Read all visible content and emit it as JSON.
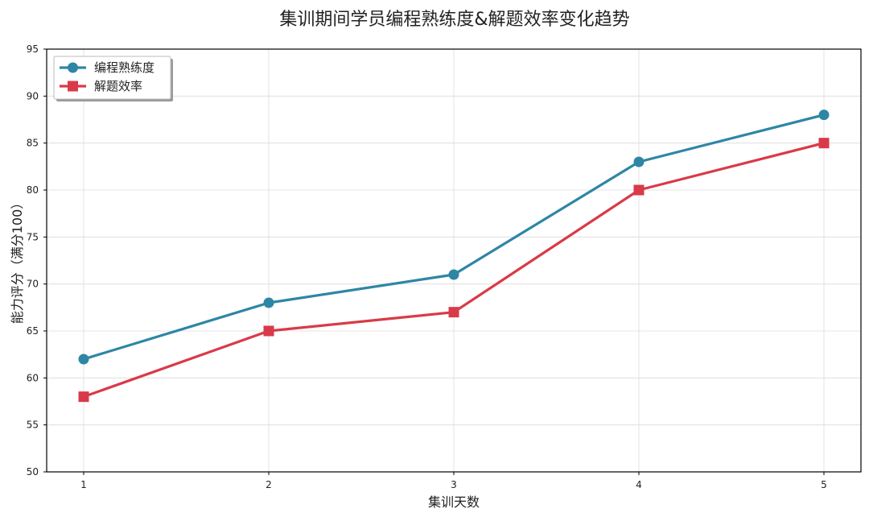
{
  "chart_data": {
    "type": "line",
    "title": "集训期间学员编程熟练度&解题效率变化趋势",
    "xlabel": "集训天数",
    "ylabel": "能力评分（满分100）",
    "x": [
      1,
      2,
      3,
      4,
      5
    ],
    "x_tick_labels": [
      "1",
      "2",
      "3",
      "4",
      "5"
    ],
    "y_tick_labels": [
      "50",
      "55",
      "60",
      "65",
      "70",
      "75",
      "80",
      "85",
      "90",
      "95"
    ],
    "ylim": [
      50,
      95
    ],
    "xlim": [
      0.8,
      5.2
    ],
    "grid": true,
    "legend_position": "upper-left",
    "series": [
      {
        "name": "编程熟练度",
        "values": [
          62,
          68,
          71,
          83,
          88
        ],
        "color": "#2e86a5",
        "marker": "circle"
      },
      {
        "name": "解题效率",
        "values": [
          58,
          65,
          67,
          80,
          85
        ],
        "color": "#d93a49",
        "marker": "square"
      }
    ]
  }
}
